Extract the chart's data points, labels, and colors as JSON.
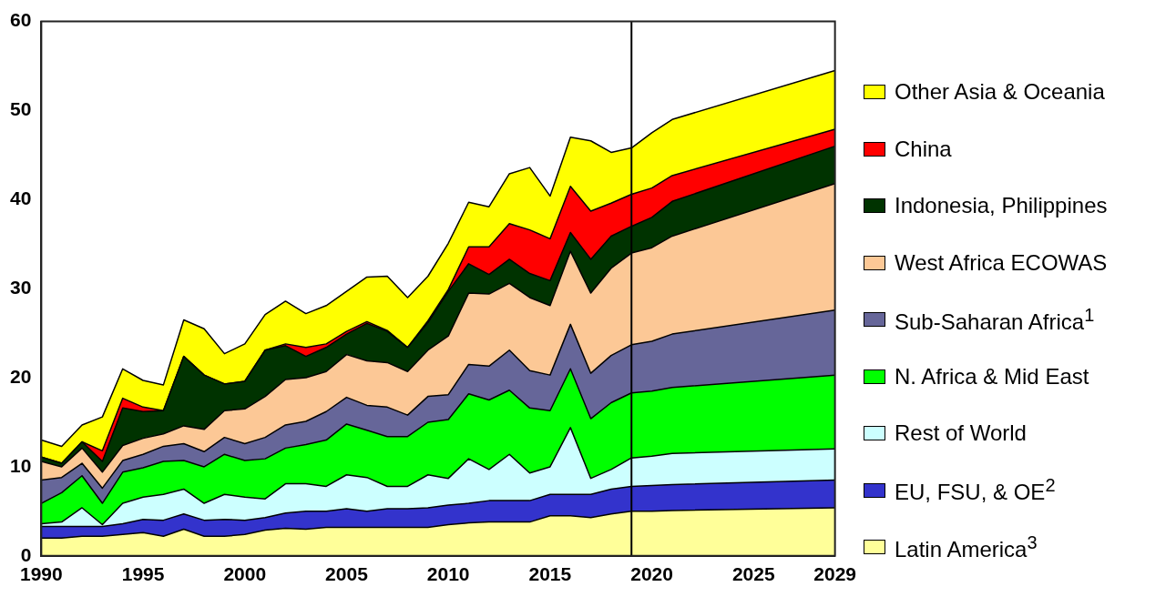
{
  "chart_data": {
    "type": "area",
    "stacked": true,
    "x": [
      1990,
      1991,
      1992,
      1993,
      1994,
      1995,
      1996,
      1997,
      1998,
      1999,
      2000,
      2001,
      2002,
      2003,
      2004,
      2005,
      2006,
      2007,
      2008,
      2009,
      2010,
      2011,
      2012,
      2013,
      2014,
      2015,
      2016,
      2017,
      2018,
      2019,
      2020,
      2021,
      2029
    ],
    "xlim": [
      1990,
      2029
    ],
    "xticks": [
      1990,
      1995,
      2000,
      2005,
      2010,
      2015,
      2020,
      2025,
      2029
    ],
    "ylim": [
      0,
      60
    ],
    "yticks": [
      0,
      10,
      20,
      30,
      40,
      50,
      60
    ],
    "grid": false,
    "legend": "right",
    "ref_lines": [
      {
        "axis": "x",
        "value": 2019,
        "color": "#000000"
      }
    ],
    "series": [
      {
        "name": "Latin America$^{3}$",
        "color": "#ffff99",
        "values": [
          2.0,
          2.0,
          2.2,
          2.2,
          2.4,
          2.6,
          2.2,
          3.0,
          2.2,
          2.2,
          2.4,
          2.9,
          3.1,
          3.0,
          3.2,
          3.2,
          3.2,
          3.2,
          3.2,
          3.2,
          3.5,
          3.7,
          3.8,
          3.8,
          3.8,
          4.5,
          4.5,
          4.3,
          4.7,
          5.0,
          5.0,
          5.1,
          5.4
        ]
      },
      {
        "name": "EU, FSU, & OE$^{2}$",
        "color": "#3333cc",
        "values": [
          1.3,
          1.3,
          1.1,
          1.1,
          1.2,
          1.5,
          1.8,
          1.7,
          1.8,
          1.9,
          1.6,
          1.4,
          1.7,
          2.0,
          1.8,
          2.1,
          1.8,
          2.1,
          2.1,
          2.2,
          2.2,
          2.2,
          2.4,
          2.4,
          2.4,
          2.4,
          2.4,
          2.6,
          2.8,
          2.8,
          2.9,
          2.9,
          3.1
        ]
      },
      {
        "name": "Rest of World",
        "color": "#ccffff",
        "values": [
          0.3,
          0.5,
          2.1,
          0.2,
          2.3,
          2.5,
          2.9,
          2.8,
          1.9,
          2.8,
          2.6,
          2.1,
          3.3,
          3.1,
          2.8,
          3.8,
          3.8,
          2.5,
          2.5,
          3.7,
          3.0,
          5.0,
          3.5,
          5.2,
          3.1,
          3.1,
          7.5,
          1.8,
          2.2,
          3.2,
          3.3,
          3.5,
          3.5
        ]
      },
      {
        "name": "N. Africa & Mid East",
        "color": "#00ff00",
        "values": [
          2.3,
          3.3,
          3.6,
          2.4,
          3.5,
          3.3,
          3.7,
          3.2,
          4.1,
          4.5,
          4.1,
          4.5,
          4.0,
          4.4,
          5.2,
          5.7,
          5.3,
          5.6,
          5.6,
          5.9,
          6.6,
          7.3,
          7.8,
          7.2,
          7.3,
          6.3,
          6.6,
          6.7,
          7.5,
          7.3,
          7.3,
          7.4,
          8.3
        ]
      },
      {
        "name": "Sub-Saharan Africa$^{1}$",
        "color": "#666699",
        "values": [
          2.6,
          1.7,
          1.4,
          1.7,
          1.3,
          1.5,
          1.7,
          1.9,
          1.7,
          1.9,
          1.9,
          2.4,
          2.6,
          2.6,
          3.2,
          3.0,
          2.8,
          3.3,
          2.4,
          2.9,
          2.8,
          3.3,
          3.8,
          4.5,
          4.2,
          4.0,
          5.0,
          5.1,
          5.3,
          5.4,
          5.6,
          6.0,
          7.3
        ]
      },
      {
        "name": "West Africa ECOWAS",
        "color": "#fcc896",
        "values": [
          2.1,
          1.2,
          1.7,
          1.8,
          1.7,
          1.8,
          1.4,
          2.0,
          2.5,
          3.0,
          3.9,
          4.6,
          5.1,
          4.9,
          4.5,
          4.8,
          5.0,
          5.0,
          4.9,
          5.2,
          6.6,
          8.0,
          8.1,
          7.5,
          8.2,
          7.8,
          8.2,
          9.0,
          9.8,
          10.3,
          10.5,
          11.0,
          14.2
        ]
      },
      {
        "name": "Indonesia, Philippines",
        "color": "#003300",
        "values": [
          0.5,
          0.4,
          0.7,
          1.2,
          4.2,
          3.0,
          2.6,
          7.8,
          6.1,
          3.0,
          3.1,
          5.2,
          3.8,
          2.4,
          2.7,
          2.3,
          4.2,
          3.5,
          2.7,
          3.1,
          5.0,
          3.3,
          2.2,
          2.7,
          2.7,
          2.8,
          2.1,
          3.8,
          3.6,
          3.0,
          3.4,
          3.9,
          4.2
        ]
      },
      {
        "name": "China",
        "color": "#ff0000",
        "values": [
          0,
          0,
          0,
          1.2,
          1.1,
          0.5,
          0,
          0,
          0,
          0,
          0,
          0,
          0.2,
          1.0,
          0.4,
          0.3,
          0.2,
          0.1,
          0,
          0.2,
          0.2,
          1.9,
          3.1,
          4.0,
          4.9,
          4.7,
          5.2,
          5.4,
          3.7,
          3.6,
          3.3,
          2.9,
          1.9
        ]
      },
      {
        "name": "Other Asia & Oceania",
        "color": "#ffff00",
        "values": [
          1.9,
          1.9,
          1.9,
          3.8,
          3.3,
          3.0,
          2.9,
          4.1,
          5.2,
          3.4,
          4.2,
          4.0,
          4.8,
          3.8,
          4.3,
          4.5,
          5.0,
          6.1,
          5.6,
          5.0,
          5.2,
          5.0,
          4.5,
          5.6,
          7.0,
          4.8,
          5.5,
          7.9,
          5.7,
          5.2,
          6.2,
          6.3,
          6.6
        ]
      }
    ]
  }
}
